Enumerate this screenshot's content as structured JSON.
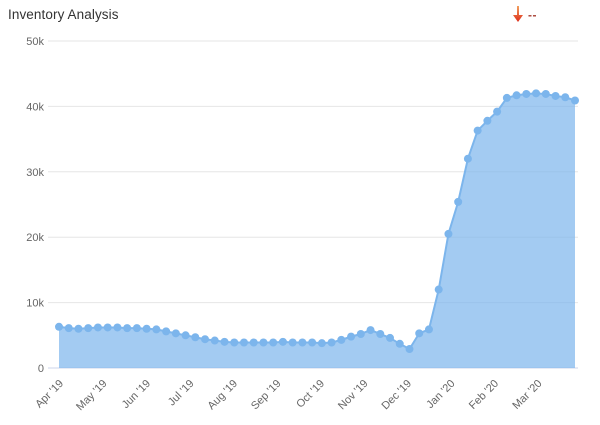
{
  "header": {
    "title": "Inventory Analysis",
    "indicator": {
      "icon": "arrow-down",
      "dashes": "--",
      "arrow_color_top": "#f2a05e",
      "arrow_color_bottom": "#dd2c1a",
      "dashes_color": "#a94438"
    }
  },
  "chart_data": {
    "type": "area",
    "title": "Inventory Analysis",
    "x_labels": [
      "Apr '19",
      "May '19",
      "Jun '19",
      "Jul '19",
      "Aug '19",
      "Sep '19",
      "Oct '19",
      "Nov '19",
      "Dec '19",
      "Jan '20",
      "Feb '20",
      "Mar '20"
    ],
    "y_ticks": [
      0,
      10000,
      20000,
      30000,
      40000,
      50000
    ],
    "y_tick_labels": [
      "0",
      "10k",
      "20k",
      "30k",
      "40k",
      "50k"
    ],
    "ylim": [
      0,
      50000
    ],
    "grid": true,
    "legend": false,
    "values": [
      6300,
      6100,
      6000,
      6100,
      6200,
      6200,
      6200,
      6100,
      6100,
      6000,
      5900,
      5600,
      5300,
      5000,
      4700,
      4400,
      4200,
      4000,
      3900,
      3900,
      3900,
      3900,
      3900,
      4000,
      3900,
      3900,
      3900,
      3800,
      3900,
      4300,
      4800,
      5200,
      5800,
      5200,
      4600,
      3700,
      2900,
      5300,
      5900,
      12000,
      20500,
      25400,
      32000,
      36300,
      37800,
      39200,
      41300,
      41700,
      41900,
      42000,
      41900,
      41600,
      41400,
      40900
    ],
    "colors": {
      "line": "#7cb5ec",
      "fill": "rgba(124,181,236,0.7)",
      "marker": "#7cb5ec",
      "grid": "#e6e6e6",
      "axis_line": "#ccd6eb",
      "label": "#666666",
      "title": "#333333"
    }
  }
}
